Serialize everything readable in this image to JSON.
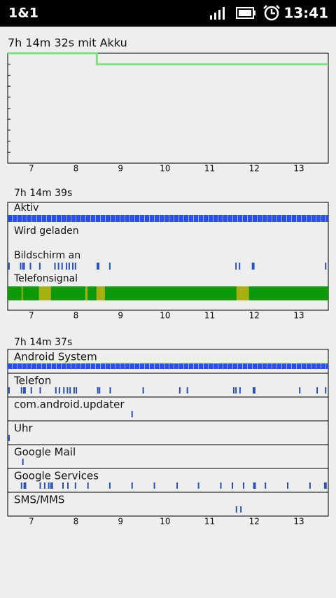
{
  "status_bar": {
    "carrier": "1&1",
    "time": "13:41"
  },
  "battery_chart": {
    "type": "line",
    "title": "7h 14m 32s mit Akku",
    "x": [
      6.47,
      8.47,
      8.47,
      13.66
    ],
    "values": [
      100,
      100,
      90,
      90
    ],
    "color": "#7ee07e",
    "xlim": [
      6.47,
      13.66
    ],
    "ylim": [
      0,
      100
    ],
    "xticks": [
      7,
      8,
      9,
      10,
      11,
      12,
      13
    ]
  },
  "system_chart": {
    "title": "7h 14m 39s",
    "rows": [
      {
        "label": "Aktiv",
        "full": true,
        "color": "#2b4fe0"
      },
      {
        "label": "Wird geladen"
      },
      {
        "label": "Bildschirm an",
        "color": "#2b4fb8",
        "events": [
          6.5,
          6.76,
          6.81,
          6.84,
          6.98,
          7.19,
          7.53,
          7.61,
          7.69,
          7.79,
          7.85,
          7.93,
          7.99,
          8.48,
          8.51,
          8.76,
          11.59,
          11.67,
          11.96,
          11.99,
          13.6
        ]
      },
      {
        "label": "Telefonsignal",
        "full": true,
        "color": "#0a9a0a",
        "weak_color": "#a8b010",
        "weak": [
          [
            6.78,
            6.81
          ],
          [
            7.17,
            7.44
          ],
          [
            8.21,
            8.26
          ],
          [
            8.46,
            8.65
          ],
          [
            11.6,
            11.88
          ]
        ]
      }
    ]
  },
  "apps_chart": {
    "title": "7h 14m 37s",
    "color": "#2b4fb8",
    "rows": [
      {
        "label": "Android System",
        "full": true,
        "color": "#2b4fe0"
      },
      {
        "label": "Telefon",
        "events": [
          6.5,
          6.78,
          6.83,
          6.86,
          7.0,
          7.2,
          7.55,
          7.63,
          7.73,
          7.81,
          7.87,
          7.96,
          8.01,
          8.49,
          8.53,
          8.77,
          9.51,
          10.33,
          10.5,
          11.54,
          11.59,
          11.68,
          11.98,
          12.01,
          13.02,
          13.41,
          13.6
        ]
      },
      {
        "label": "com.android.updater",
        "events": [
          9.26
        ]
      },
      {
        "label": "Uhr",
        "events": [
          6.5
        ]
      },
      {
        "label": "Google Mail",
        "events": [
          6.81
        ]
      },
      {
        "label": "Google Services",
        "events": [
          6.78,
          6.84,
          6.87,
          7.2,
          7.3,
          7.39,
          7.44,
          7.47,
          7.71,
          7.82,
          7.99,
          8.27,
          8.76,
          9.26,
          9.76,
          10.27,
          10.75,
          11.25,
          11.51,
          11.76,
          11.99,
          12.02,
          12.25,
          12.75,
          13.25,
          13.58,
          13.61
        ]
      },
      {
        "label": "SMS/MMS",
        "events": [
          11.6,
          11.7
        ]
      }
    ]
  }
}
